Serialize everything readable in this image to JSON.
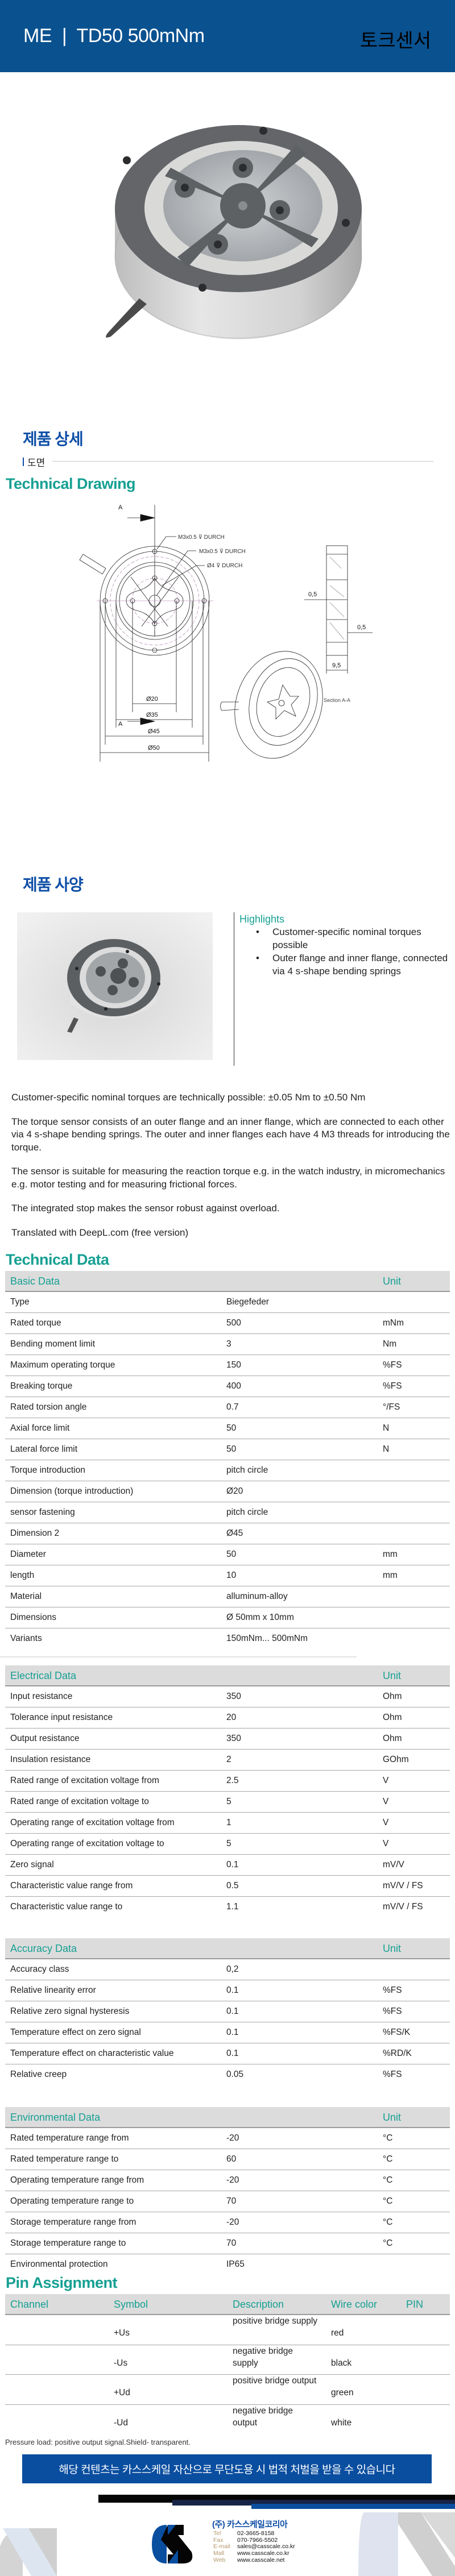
{
  "header": {
    "title": "ME  |  TD50 500mNm",
    "category": "토크센서"
  },
  "colors": {
    "header_bg": "#0a5190",
    "heading_blue": "#0d4ea6",
    "teal": "#16a093",
    "banner_bg": "#0a4ea0",
    "table_header_bg": "#dcdcdc"
  },
  "detail": {
    "heading": "제품 상세",
    "subsection": "도면",
    "drawing_title": "Technical Drawing",
    "drawing_labels": {
      "section_marker": "A",
      "thread_outer": "M3x0.5 ⊽ DURCH",
      "thread_inner": "M3x0.5 ⊽ DURCH",
      "hole": "Ø4 ⊽ DURCH",
      "d20": "Ø20",
      "d35": "Ø35",
      "d45": "Ø45",
      "d50": "Ø50",
      "gap1": "0,5",
      "gap2": "0,5",
      "thickness": "9,5",
      "section_caption": "Section A-A"
    }
  },
  "spec": {
    "heading": "제품 사양",
    "highlights_title": "Highlights",
    "highlights": [
      "Customer-specific nominal torques possible",
      "Outer flange and inner flange, connected via 4 s-shape bending springs"
    ],
    "paragraphs": [
      "Customer-specific nominal torques are technically possible: ±0.05 Nm to ±0.50 Nm",
      "The torque sensor consists of an outer flange and an inner flange, which are connected to each other via 4 s-shape bending springs. The outer and inner flanges each have 4 M3 threads for introducing the torque.",
      "The sensor is suitable for measuring the reaction torque e.g. in the watch industry, in micromechanics e.g. motor testing and for measuring frictional forces.",
      "The integrated stop makes the sensor robust against overload.",
      "Translated with DeepL.com (free version)"
    ]
  },
  "technical_data": {
    "heading": "Technical Data",
    "tables": [
      {
        "title": "Basic Data",
        "unit_label": "Unit",
        "rows": [
          [
            "Type",
            "Biegefeder",
            ""
          ],
          [
            "Rated torque",
            "500",
            "mNm"
          ],
          [
            "Bending moment limit",
            "3",
            "Nm"
          ],
          [
            "Maximum operating torque",
            "150",
            "%FS"
          ],
          [
            "Breaking torque",
            "400",
            "%FS"
          ],
          [
            "Rated torsion angle",
            "0.7",
            "°/FS"
          ],
          [
            "Axial force limit",
            "50",
            "N"
          ],
          [
            "Lateral force limit",
            "50",
            "N"
          ],
          [
            "Torque introduction",
            "pitch circle",
            ""
          ],
          [
            "Dimension (torque introduction)",
            "Ø20",
            ""
          ],
          [
            "sensor fastening",
            "pitch circle",
            ""
          ],
          [
            "Dimension 2",
            "Ø45",
            ""
          ],
          [
            "Diameter",
            "50",
            "mm"
          ],
          [
            "length",
            "10",
            "mm"
          ],
          [
            "Material",
            "alluminum-alloy",
            ""
          ],
          [
            "Dimensions",
            "Ø 50mm x 10mm",
            ""
          ],
          [
            "Variants",
            "150mNm... 500mNm",
            ""
          ]
        ]
      },
      {
        "title": "Electrical Data",
        "unit_label": "Unit",
        "rows": [
          [
            "Input resistance",
            "350",
            "Ohm"
          ],
          [
            "Tolerance input resistance",
            "20",
            "Ohm"
          ],
          [
            "Output resistance",
            "350",
            "Ohm"
          ],
          [
            "Insulation resistance",
            "2",
            "GOhm"
          ],
          [
            "Rated range of excitation voltage from",
            "2.5",
            "V"
          ],
          [
            "Rated range of excitation voltage to",
            "5",
            "V"
          ],
          [
            "Operating range of excitation voltage from",
            "1",
            "V"
          ],
          [
            "Operating range of excitation voltage to",
            "5",
            "V"
          ],
          [
            "Zero signal",
            "0.1",
            "mV/V"
          ],
          [
            "Characteristic value range from",
            "0.5",
            "mV/V / FS"
          ],
          [
            "Characteristic value range to",
            "1.1",
            "mV/V / FS"
          ]
        ]
      },
      {
        "title": "Accuracy Data",
        "unit_label": "Unit",
        "rows": [
          [
            "Accuracy class",
            "0,2",
            ""
          ],
          [
            "Relative linearity error",
            "0.1",
            "%FS"
          ],
          [
            "Relative zero signal hysteresis",
            "0.1",
            "%FS"
          ],
          [
            "Temperature effect on zero signal",
            "0.1",
            "%FS/K"
          ],
          [
            "Temperature effect on characteristic value",
            "0.1",
            "%RD/K"
          ],
          [
            "Relative creep",
            "0.05",
            "%FS"
          ]
        ]
      },
      {
        "title": "Environmental Data",
        "unit_label": "Unit",
        "rows": [
          [
            "Rated temperature range from",
            "-20",
            "°C"
          ],
          [
            "Rated temperature range to",
            "60",
            "°C"
          ],
          [
            "Operating temperature range from",
            "-20",
            "°C"
          ],
          [
            "Operating temperature range to",
            "70",
            "°C"
          ],
          [
            "Storage temperature range from",
            "-20",
            "°C"
          ],
          [
            "Storage temperature range to",
            "70",
            "°C"
          ],
          [
            "Environmental protection",
            "IP65",
            ""
          ]
        ]
      }
    ]
  },
  "pins": {
    "heading": "Pin Assignment",
    "columns": [
      "Channel",
      "Symbol",
      "Description",
      "Wire color",
      "PIN"
    ],
    "rows": [
      [
        "",
        "+Us",
        "positive bridge supply",
        "red",
        ""
      ],
      [
        "",
        "-Us",
        "negative bridge supply",
        "black",
        ""
      ],
      [
        "",
        "+Ud",
        "positive bridge output",
        "green",
        ""
      ],
      [
        "",
        "-Ud",
        "negative bridge output",
        "white",
        ""
      ]
    ],
    "note": "Pressure load: positive output signal.Shield- transparent."
  },
  "footer": {
    "banner": "해당 컨텐츠는 카스스케일 자산으로 무단도용 시 법적 처벌을 받을 수 있습니다",
    "company": "(주) 카스스케일코리아",
    "contacts": [
      {
        "label": "Tel",
        "value": "02-3665-8158"
      },
      {
        "label": "Fax",
        "value": "070-7966-5502"
      },
      {
        "label": "E-mail",
        "value": "sales@casscale.co.kr"
      },
      {
        "label": "Mall",
        "value": "www.casscale.co.kr"
      },
      {
        "label": "Web",
        "value": "www.casscale.net"
      }
    ],
    "logo_text": "CS"
  }
}
